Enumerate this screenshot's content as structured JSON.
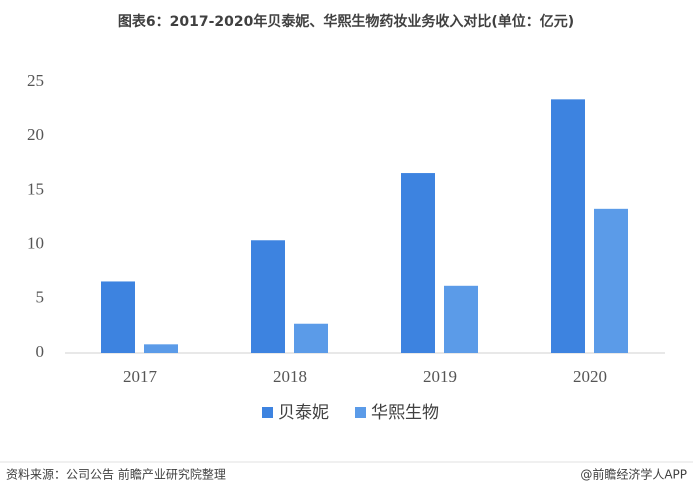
{
  "chart_data": {
    "type": "bar",
    "title": "图表6：2017-2020年贝泰妮、华熙生物药妆业务收入对比(单位：亿元)",
    "categories": [
      "2017",
      "2018",
      "2019",
      "2020"
    ],
    "series": [
      {
        "name": "贝泰妮",
        "color": "#3d83e0",
        "values": [
          6.6,
          10.4,
          16.6,
          23.4
        ]
      },
      {
        "name": "华熙生物",
        "color": "#5b9be8",
        "values": [
          0.8,
          2.7,
          6.2,
          13.3
        ]
      }
    ],
    "ylim": [
      0,
      25
    ],
    "yticks": [
      0,
      5,
      10,
      15,
      20,
      25
    ],
    "grid": false,
    "source": "资料来源：公司公告 前瞻产业研究院整理",
    "credit": "@前瞻经济学人APP"
  }
}
